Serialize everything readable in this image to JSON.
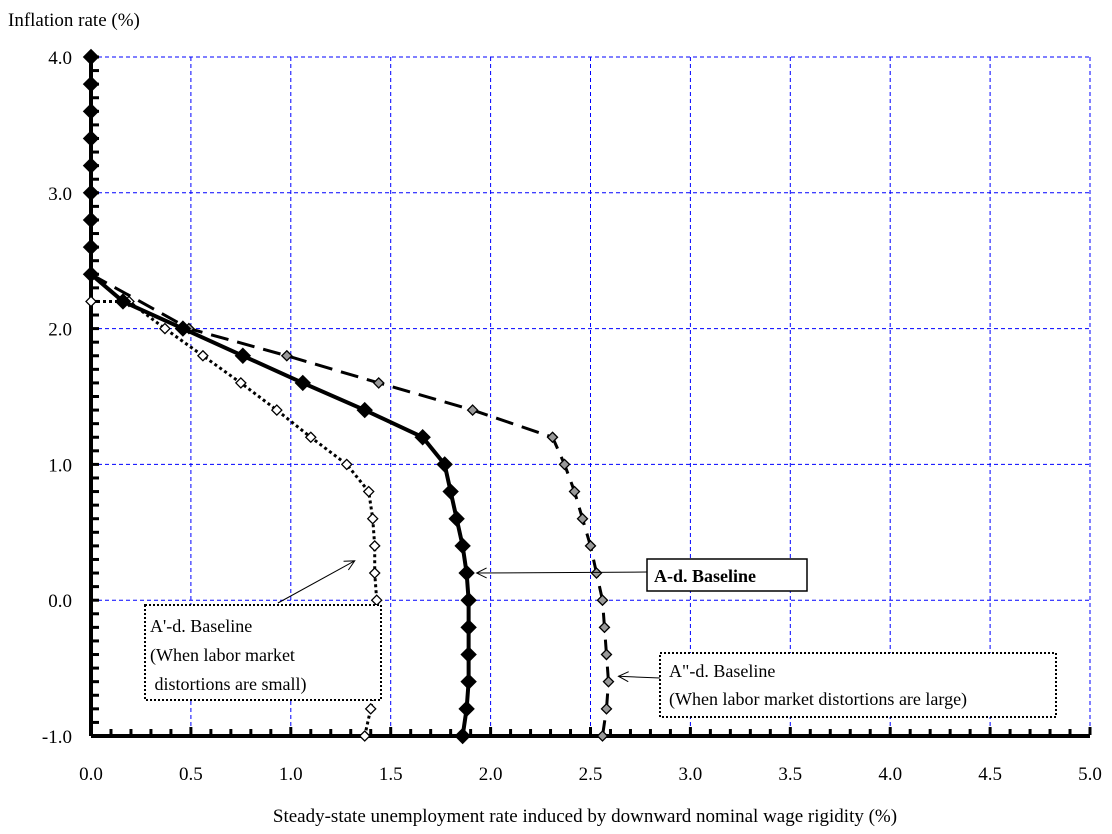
{
  "chart_data": {
    "type": "line",
    "ylabel": "Inflation rate (%)",
    "xlabel": "Steady-state unemployment rate induced by downward nominal wage rigidity (%)",
    "xlim": [
      0,
      5
    ],
    "ylim": [
      -1,
      4
    ],
    "x_ticks": [
      "0.0",
      "0.5",
      "1.0",
      "1.5",
      "2.0",
      "2.5",
      "3.0",
      "3.5",
      "4.0",
      "4.5",
      "5.0"
    ],
    "y_ticks": [
      "4.0",
      "3.0",
      "2.0",
      "1.0",
      "0.0",
      "-1.0"
    ],
    "grid": true,
    "series": [
      {
        "name": "A-d. Baseline",
        "style": "solid-bold",
        "marker": "diamond-black",
        "color": "#000000",
        "points": [
          [
            0.0,
            4.0
          ],
          [
            0.0,
            3.8
          ],
          [
            0.0,
            3.6
          ],
          [
            0.0,
            3.4
          ],
          [
            0.0,
            3.2
          ],
          [
            0.0,
            3.0
          ],
          [
            0.0,
            2.8
          ],
          [
            0.0,
            2.6
          ],
          [
            0.0,
            2.4
          ],
          [
            0.16,
            2.2
          ],
          [
            0.46,
            2.0
          ],
          [
            0.76,
            1.8
          ],
          [
            1.06,
            1.6
          ],
          [
            1.37,
            1.4
          ],
          [
            1.66,
            1.2
          ],
          [
            1.77,
            1.0
          ],
          [
            1.8,
            0.8
          ],
          [
            1.83,
            0.6
          ],
          [
            1.86,
            0.4
          ],
          [
            1.88,
            0.2
          ],
          [
            1.89,
            0.0
          ],
          [
            1.89,
            -0.2
          ],
          [
            1.89,
            -0.4
          ],
          [
            1.89,
            -0.6
          ],
          [
            1.88,
            -0.8
          ],
          [
            1.86,
            -1.0
          ]
        ]
      },
      {
        "name": "A'-d. Baseline",
        "style": "dotted",
        "marker": "diamond-white",
        "color": "#000000",
        "points": [
          [
            0.0,
            2.2
          ],
          [
            0.19,
            2.2
          ],
          [
            0.37,
            2.0
          ],
          [
            0.56,
            1.8
          ],
          [
            0.75,
            1.6
          ],
          [
            0.93,
            1.4
          ],
          [
            1.1,
            1.2
          ],
          [
            1.28,
            1.0
          ],
          [
            1.39,
            0.8
          ],
          [
            1.41,
            0.6
          ],
          [
            1.42,
            0.4
          ],
          [
            1.42,
            0.2
          ],
          [
            1.43,
            0.0
          ],
          [
            1.42,
            -0.2
          ],
          [
            1.42,
            -0.4
          ],
          [
            1.42,
            -0.6
          ],
          [
            1.4,
            -0.8
          ],
          [
            1.37,
            -1.0
          ]
        ]
      },
      {
        "name": "A\"-d. Baseline",
        "style": "dashed",
        "marker": "diamond-gray",
        "color": "#000000",
        "points": [
          [
            0.0,
            2.4
          ],
          [
            0.49,
            2.0
          ],
          [
            0.98,
            1.8
          ],
          [
            1.44,
            1.6
          ],
          [
            1.91,
            1.4
          ],
          [
            2.31,
            1.2
          ],
          [
            2.37,
            1.0
          ],
          [
            2.42,
            0.8
          ],
          [
            2.46,
            0.6
          ],
          [
            2.5,
            0.4
          ],
          [
            2.53,
            0.2
          ],
          [
            2.56,
            0.0
          ],
          [
            2.57,
            -0.2
          ],
          [
            2.58,
            -0.4
          ],
          [
            2.59,
            -0.6
          ],
          [
            2.58,
            -0.8
          ],
          [
            2.56,
            -1.0
          ]
        ]
      }
    ],
    "annotations": [
      {
        "id": "a",
        "lines": [
          "A-d. Baseline"
        ],
        "bold": true,
        "arrow_to": [
          1.93,
          0.2
        ]
      },
      {
        "id": "ap",
        "lines": [
          "A'-d. Baseline",
          "(When labor market",
          " distortions are small)"
        ],
        "bold": false,
        "arrow_to": [
          1.32,
          0.29
        ]
      },
      {
        "id": "app",
        "lines": [
          "A\"-d. Baseline",
          "(When labor market distortions are large)"
        ],
        "bold": false,
        "arrow_to": [
          2.64,
          -0.56
        ]
      }
    ],
    "grid_color": "#0000ff"
  }
}
